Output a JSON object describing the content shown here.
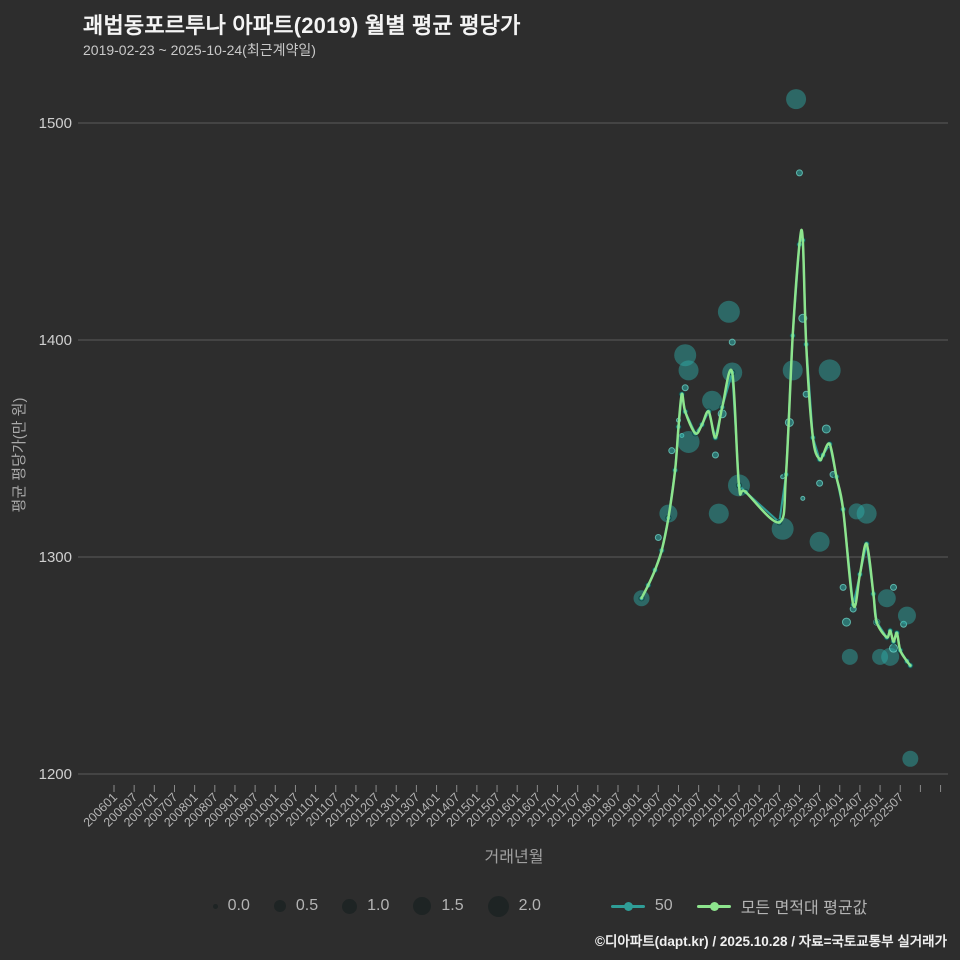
{
  "footer": {
    "credit": "©디아파트(dapt.kr) / 2025.10.28 / 자료=국토교통부 실거래가"
  },
  "chart_data": {
    "type": "scatter",
    "title": "괘법동포르투나 아파트(2019) 월별 평균 평당가",
    "subtitle": "2019-02-23 ~ 2025-10-24(최근계약일)",
    "xlabel": "거래년월",
    "ylabel": "평균 평당가(만 원)",
    "ylim": [
      1180,
      1525
    ],
    "yticks": [
      1200,
      1300,
      1400,
      1500
    ],
    "grid": "horizontal-only",
    "legend_position": "bottom-center",
    "xtick_labels": [
      "200601",
      "200607",
      "200701",
      "200707",
      "200801",
      "200807",
      "200901",
      "200907",
      "201001",
      "201007",
      "201101",
      "201107",
      "201201",
      "201207",
      "201301",
      "201307",
      "201401",
      "201407",
      "201501",
      "201507",
      "201601",
      "201607",
      "201701",
      "201707",
      "201801",
      "201807",
      "201901",
      "201907",
      "202001",
      "202007",
      "202101",
      "202107",
      "202201",
      "202207",
      "202301",
      "202307",
      "202401",
      "202407",
      "202501",
      "202507"
    ],
    "colors": {
      "background": "#2d2d2d",
      "gridline": "#5a5a5a",
      "tick_text": "#b4b4b4",
      "line_green": "#8de48d",
      "line_teal": "#2f9d97",
      "bubble_fill": "rgba(45,175,170,0.46)",
      "bubble_small_stroke": "rgba(110,215,200,0.75)",
      "size_legend_dot": "#1e2424"
    },
    "legend": {
      "sizes": [
        "0.0",
        "0.5",
        "1.0",
        "1.5",
        "2.0"
      ],
      "series": [
        {
          "name": "50",
          "color": "#2f9d97"
        },
        {
          "name": "모든 면적대 평균값",
          "color": "#8de48d"
        }
      ]
    },
    "series": [
      {
        "name": "모든 면적대 평균값",
        "type": "line",
        "points": [
          [
            201902,
            1281
          ],
          [
            201904,
            1287
          ],
          [
            201906,
            1294
          ],
          [
            201908,
            1303
          ],
          [
            201910,
            1318
          ],
          [
            201912,
            1340
          ],
          [
            202001,
            1360
          ],
          [
            202002,
            1375
          ],
          [
            202003,
            1367
          ],
          [
            202006,
            1357
          ],
          [
            202008,
            1361
          ],
          [
            202010,
            1367
          ],
          [
            202012,
            1355
          ],
          [
            202102,
            1369
          ],
          [
            202105,
            1385
          ],
          [
            202107,
            1333
          ],
          [
            202109,
            1330
          ],
          [
            202207,
            1316
          ],
          [
            202209,
            1338
          ],
          [
            202211,
            1402
          ],
          [
            202301,
            1444
          ],
          [
            202302,
            1446
          ],
          [
            202303,
            1398
          ],
          [
            202305,
            1355
          ],
          [
            202307,
            1345
          ],
          [
            202308,
            1347
          ],
          [
            202310,
            1352
          ],
          [
            202312,
            1337
          ],
          [
            202402,
            1322
          ],
          [
            202405,
            1278
          ],
          [
            202407,
            1292
          ],
          [
            202409,
            1306
          ],
          [
            202411,
            1283
          ],
          [
            202412,
            1270
          ],
          [
            202503,
            1263
          ],
          [
            202504,
            1266
          ],
          [
            202505,
            1261
          ],
          [
            202506,
            1265
          ],
          [
            202507,
            1257
          ],
          [
            202509,
            1252
          ],
          [
            202510,
            1250
          ]
        ]
      },
      {
        "name": "50",
        "type": "line+markers",
        "points": "same-as-average"
      }
    ],
    "bubbles": [
      [
        201902,
        1281,
        8
      ],
      [
        201907,
        1309,
        3
      ],
      [
        201910,
        1320,
        9
      ],
      [
        201911,
        1349,
        3
      ],
      [
        202001,
        1363,
        2
      ],
      [
        202002,
        1356,
        2
      ],
      [
        202003,
        1393,
        11
      ],
      [
        202003,
        1378,
        3
      ],
      [
        202004,
        1386,
        10
      ],
      [
        202004,
        1353,
        11
      ],
      [
        202011,
        1372,
        10
      ],
      [
        202012,
        1347,
        3
      ],
      [
        202101,
        1320,
        10
      ],
      [
        202102,
        1366,
        4
      ],
      [
        202104,
        1413,
        11
      ],
      [
        202105,
        1399,
        3
      ],
      [
        202105,
        1385,
        10
      ],
      [
        202107,
        1333,
        11
      ],
      [
        202208,
        1313,
        11
      ],
      [
        202208,
        1337,
        2
      ],
      [
        202210,
        1362,
        4
      ],
      [
        202211,
        1386,
        10
      ],
      [
        202212,
        1511,
        10
      ],
      [
        202301,
        1477,
        3
      ],
      [
        202302,
        1410,
        4
      ],
      [
        202302,
        1327,
        2
      ],
      [
        202303,
        1375,
        3
      ],
      [
        202307,
        1307,
        10
      ],
      [
        202307,
        1334,
        3
      ],
      [
        202309,
        1359,
        4
      ],
      [
        202310,
        1386,
        11
      ],
      [
        202311,
        1338,
        3
      ],
      [
        202402,
        1286,
        3
      ],
      [
        202403,
        1270,
        4
      ],
      [
        202404,
        1254,
        8
      ],
      [
        202405,
        1276,
        3
      ],
      [
        202406,
        1321,
        8
      ],
      [
        202409,
        1320,
        10
      ],
      [
        202412,
        1270,
        3
      ],
      [
        202501,
        1254,
        8
      ],
      [
        202503,
        1281,
        9
      ],
      [
        202504,
        1254,
        9
      ],
      [
        202505,
        1258,
        4
      ],
      [
        202505,
        1286,
        3
      ],
      [
        202508,
        1269,
        3
      ],
      [
        202509,
        1273,
        9
      ],
      [
        202510,
        1207,
        8
      ]
    ]
  }
}
